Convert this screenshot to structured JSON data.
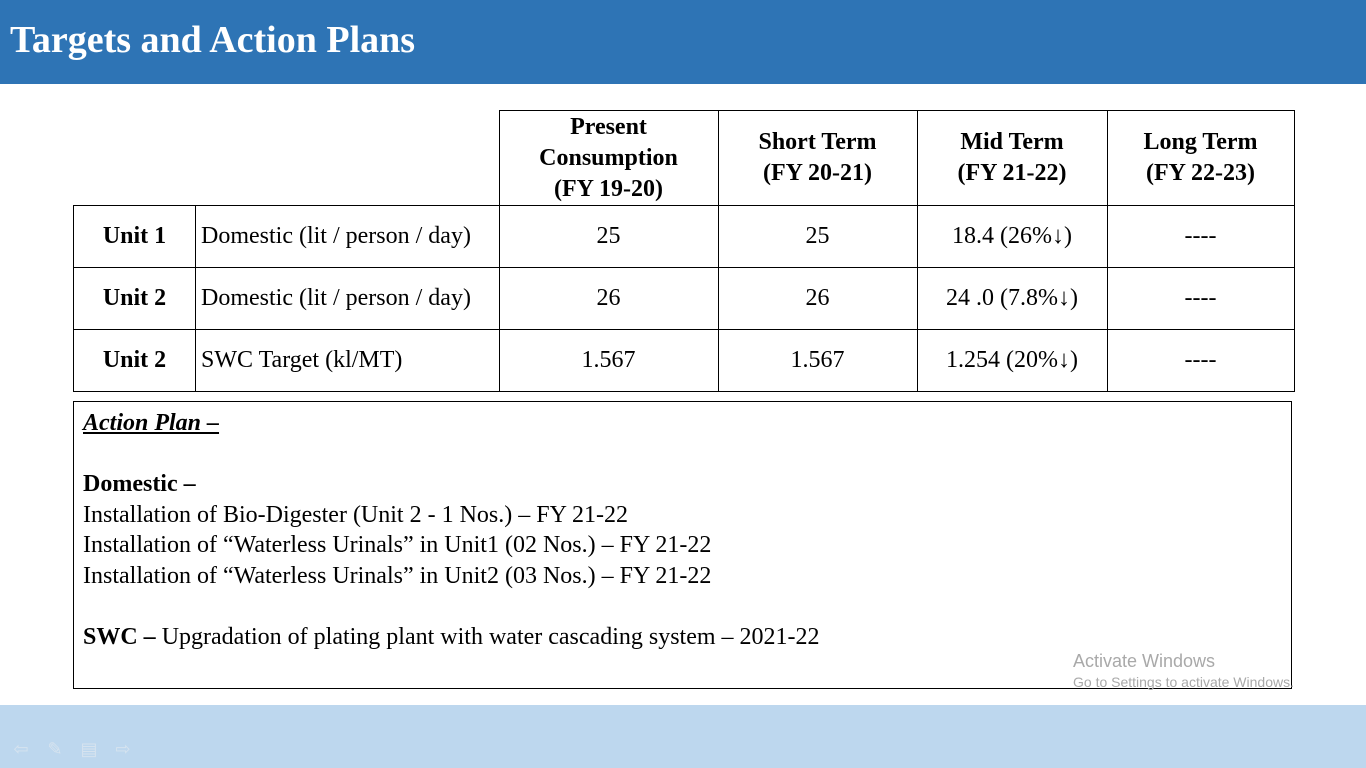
{
  "header": {
    "title": "Targets and Action Plans"
  },
  "table": {
    "columns": [
      {
        "line1": "Present",
        "line2": "Consumption",
        "line3": "(FY 19-20)"
      },
      {
        "line1": "Short Term",
        "line2": "(FY 20-21)"
      },
      {
        "line1": "Mid Term",
        "line2": "(FY 21-22)"
      },
      {
        "line1": "Long Term",
        "line2": "(FY 22-23)"
      }
    ],
    "rows": [
      {
        "unit": "Unit 1",
        "desc": "Domestic (lit / person / day)",
        "present": "25",
        "short": "25",
        "mid": "18.4 (26%↓)",
        "long": "----"
      },
      {
        "unit": "Unit 2",
        "desc": "Domestic (lit / person / day)",
        "present": "26",
        "short": "26",
        "mid": "24 .0 (7.8%↓)",
        "long": "----"
      },
      {
        "unit": "Unit 2",
        "desc": "SWC Target (kl/MT)",
        "present": "1.567",
        "short": "1.567",
        "mid": "1.254 (20%↓)",
        "long": "----"
      }
    ]
  },
  "action_plan": {
    "title": "Action Plan –",
    "domestic_heading": "Domestic –",
    "domestic_items": [
      "Installation of Bio-Digester (Unit 2 - 1 Nos.) – FY 21-22",
      "Installation of “Waterless Urinals” in Unit1 (02 Nos.) – FY 21-22",
      "Installation of “Waterless Urinals” in Unit2 (03 Nos.) – FY 21-22"
    ],
    "swc_label": "SWC –",
    "swc_text": " Upgradation of plating plant with water cascading system – 2021-22"
  },
  "watermark": {
    "line1": "Activate Windows",
    "line2": "Go to Settings to activate Windows."
  },
  "nav": {
    "icons": [
      "arrow-left-icon",
      "pen-icon",
      "menu-icon",
      "arrow-right-icon"
    ]
  },
  "colors": {
    "header_bg": "#2e74b5",
    "footer_bg": "#bdd7ee"
  }
}
